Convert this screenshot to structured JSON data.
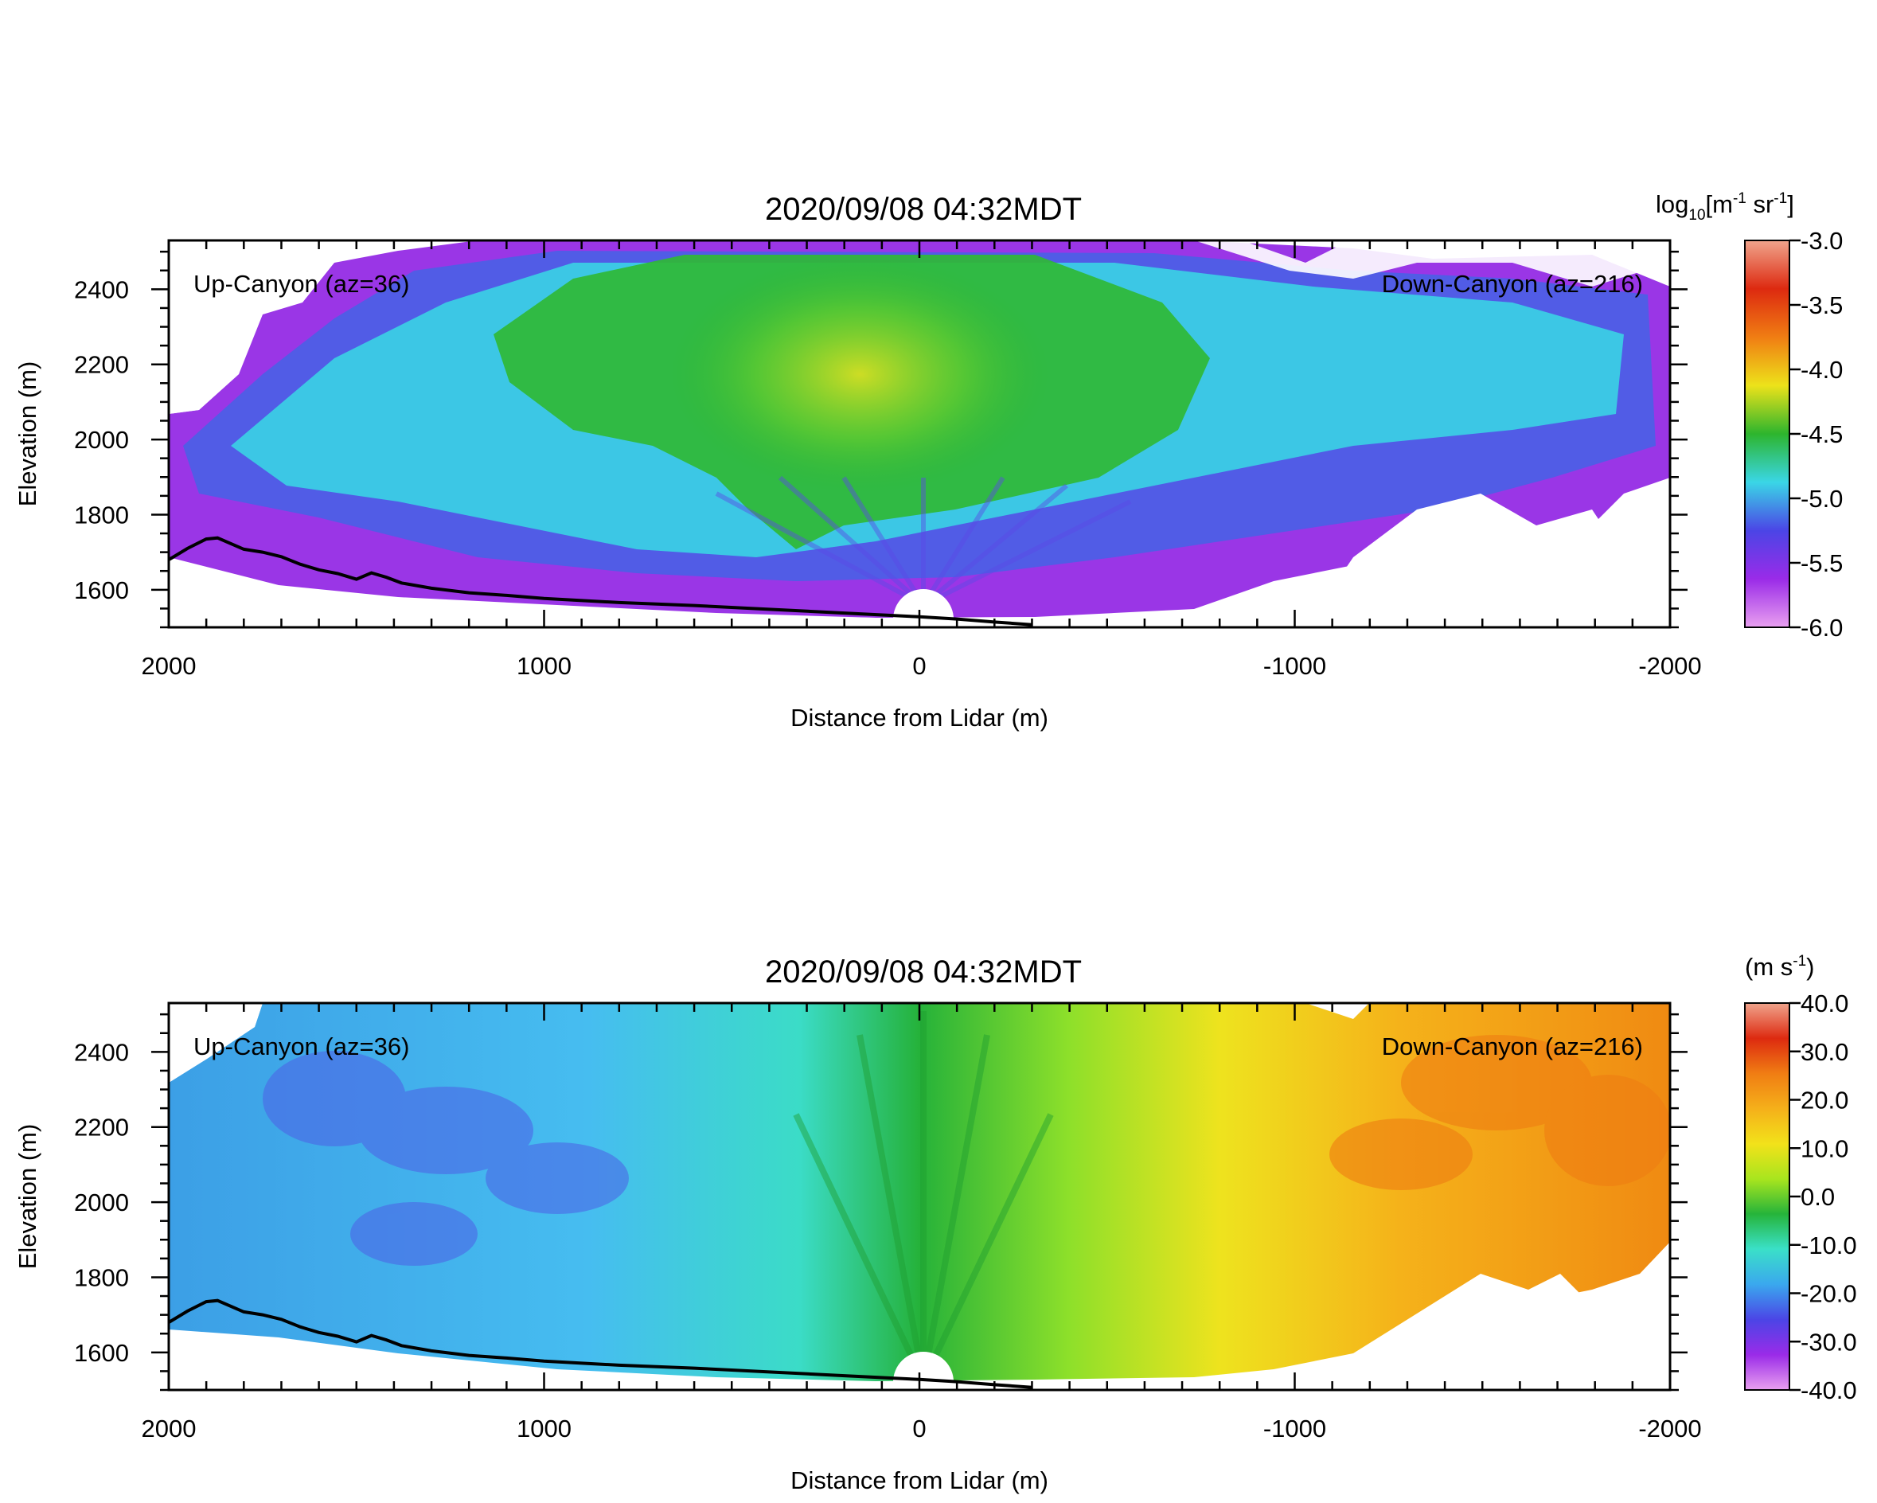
{
  "chart_data": [
    {
      "type": "heatmap",
      "title": "2020/09/08 04:32MDT",
      "xlabel": "Distance from Lidar (m)",
      "ylabel": "Elevation (m)",
      "xlim": [
        2000,
        -2000
      ],
      "ylim": [
        1500,
        2530
      ],
      "xticks": [
        2000,
        1000,
        0,
        -1000,
        -2000
      ],
      "xtick_labels": [
        "2000",
        "1000",
        "0",
        "-1000",
        "-2000"
      ],
      "yticks": [
        1600,
        1800,
        2000,
        2200,
        2400
      ],
      "ytick_labels": [
        "1600",
        "1800",
        "2000",
        "2200",
        "2400"
      ],
      "annotations": [
        "Up-Canyon (az=36)",
        "Down-Canyon (az=216)"
      ],
      "colorbar": {
        "label_main": "log",
        "label_sub": "10",
        "label_rest_1": "[m",
        "label_sup_1": "-1",
        "label_rest_2": " sr",
        "label_sup_2": "-1",
        "label_rest_3": "]",
        "range": [
          -6.0,
          -3.0
        ],
        "ticks": [
          -3.0,
          -3.5,
          -4.0,
          -4.5,
          -5.0,
          -5.5,
          -6.0
        ],
        "tick_labels": [
          "-3.0",
          "-3.5",
          "-4.0",
          "-4.5",
          "-5.0",
          "-5.5",
          "-6.0"
        ],
        "colors": [
          "#e9a0f0",
          "#9a2be8",
          "#4b45e6",
          "#3ad6e6",
          "#2db52d",
          "#ede21a",
          "#f07d13",
          "#dd2a10",
          "#f0a48c"
        ]
      },
      "terrain": {
        "x": [
          2000,
          1950,
          1900,
          1870,
          1800,
          1750,
          1700,
          1650,
          1600,
          1550,
          1500,
          1460,
          1420,
          1380,
          1300,
          1200,
          1100,
          1000,
          800,
          600,
          400,
          200,
          0,
          -100,
          -200,
          -300
        ],
        "y": [
          1680,
          1710,
          1735,
          1738,
          1708,
          1700,
          1688,
          1668,
          1653,
          1643,
          1628,
          1645,
          1633,
          1618,
          1604,
          1592,
          1585,
          1577,
          1566,
          1558,
          1548,
          1538,
          1528,
          1522,
          1514,
          1507
        ]
      }
    },
    {
      "type": "heatmap",
      "title": "2020/09/08 04:32MDT",
      "xlabel": "Distance from Lidar (m)",
      "ylabel": "Elevation (m)",
      "xlim": [
        2000,
        -2000
      ],
      "ylim": [
        1500,
        2530
      ],
      "xticks": [
        2000,
        1000,
        0,
        -1000,
        -2000
      ],
      "xtick_labels": [
        "2000",
        "1000",
        "0",
        "-1000",
        "-2000"
      ],
      "yticks": [
        1600,
        1800,
        2000,
        2200,
        2400
      ],
      "ytick_labels": [
        "1600",
        "1800",
        "2000",
        "2200",
        "2400"
      ],
      "annotations": [
        "Up-Canyon (az=36)",
        "Down-Canyon (az=216)"
      ],
      "colorbar": {
        "label_main": "(m s",
        "label_sup_1": "-1",
        "label_rest_1": ")",
        "range": [
          -40.0,
          40.0
        ],
        "ticks": [
          40.0,
          30.0,
          20.0,
          10.0,
          0.0,
          -10.0,
          -20.0,
          -30.0,
          -40.0
        ],
        "tick_labels": [
          "40.0",
          "30.0",
          "20.0",
          "10.0",
          "0.0",
          "-10.0",
          "-20.0",
          "-30.0",
          "-40.0"
        ],
        "colors": [
          "#e9a0f0",
          "#9a2be8",
          "#4b45e6",
          "#3aa8ee",
          "#3ae0c8",
          "#26b43a",
          "#a8e51e",
          "#f2e21a",
          "#f5b01a",
          "#f07d13",
          "#dd2a10",
          "#f0a48c"
        ]
      },
      "terrain": {
        "x": [
          2000,
          1950,
          1900,
          1870,
          1800,
          1750,
          1700,
          1650,
          1600,
          1550,
          1500,
          1460,
          1420,
          1380,
          1300,
          1200,
          1100,
          1000,
          800,
          600,
          400,
          200,
          0,
          -100,
          -200,
          -300
        ],
        "y": [
          1680,
          1710,
          1735,
          1738,
          1708,
          1700,
          1688,
          1668,
          1653,
          1643,
          1628,
          1645,
          1633,
          1618,
          1604,
          1592,
          1585,
          1577,
          1566,
          1558,
          1548,
          1538,
          1528,
          1522,
          1514,
          1507
        ]
      }
    }
  ]
}
